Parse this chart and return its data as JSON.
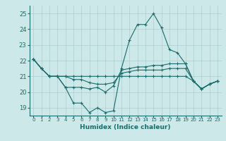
{
  "title": "",
  "xlabel": "Humidex (Indice chaleur)",
  "background_color": "#cce8e8",
  "grid_color": "#aacfcf",
  "line_color": "#1a6b6b",
  "xlim": [
    -0.5,
    23.5
  ],
  "ylim": [
    18.5,
    25.5
  ],
  "yticks": [
    19,
    20,
    21,
    22,
    23,
    24,
    25
  ],
  "xticks": [
    0,
    1,
    2,
    3,
    4,
    5,
    6,
    7,
    8,
    9,
    10,
    11,
    12,
    13,
    14,
    15,
    16,
    17,
    18,
    19,
    20,
    21,
    22,
    23
  ],
  "lines": [
    [
      22.1,
      21.5,
      21.0,
      21.0,
      20.3,
      19.3,
      19.3,
      18.7,
      19.0,
      18.7,
      18.8,
      21.5,
      23.3,
      24.3,
      24.3,
      25.0,
      24.1,
      22.7,
      22.5,
      21.8,
      20.7,
      20.2,
      20.5,
      20.7
    ],
    [
      22.1,
      21.5,
      21.0,
      21.0,
      20.3,
      20.3,
      20.3,
      20.2,
      20.3,
      20.0,
      20.4,
      21.4,
      21.5,
      21.6,
      21.6,
      21.7,
      21.7,
      21.8,
      21.8,
      21.8,
      20.7,
      20.2,
      20.5,
      20.7
    ],
    [
      22.1,
      21.5,
      21.0,
      21.0,
      21.0,
      20.8,
      20.8,
      20.6,
      20.5,
      20.5,
      20.6,
      21.2,
      21.3,
      21.4,
      21.4,
      21.4,
      21.4,
      21.5,
      21.5,
      21.5,
      20.7,
      20.2,
      20.5,
      20.7
    ],
    [
      22.1,
      21.5,
      21.0,
      21.0,
      21.0,
      21.0,
      21.0,
      21.0,
      21.0,
      21.0,
      21.0,
      21.0,
      21.0,
      21.0,
      21.0,
      21.0,
      21.0,
      21.0,
      21.0,
      21.0,
      20.7,
      20.2,
      20.5,
      20.7
    ]
  ],
  "figsize": [
    3.2,
    2.0
  ],
  "dpi": 100
}
